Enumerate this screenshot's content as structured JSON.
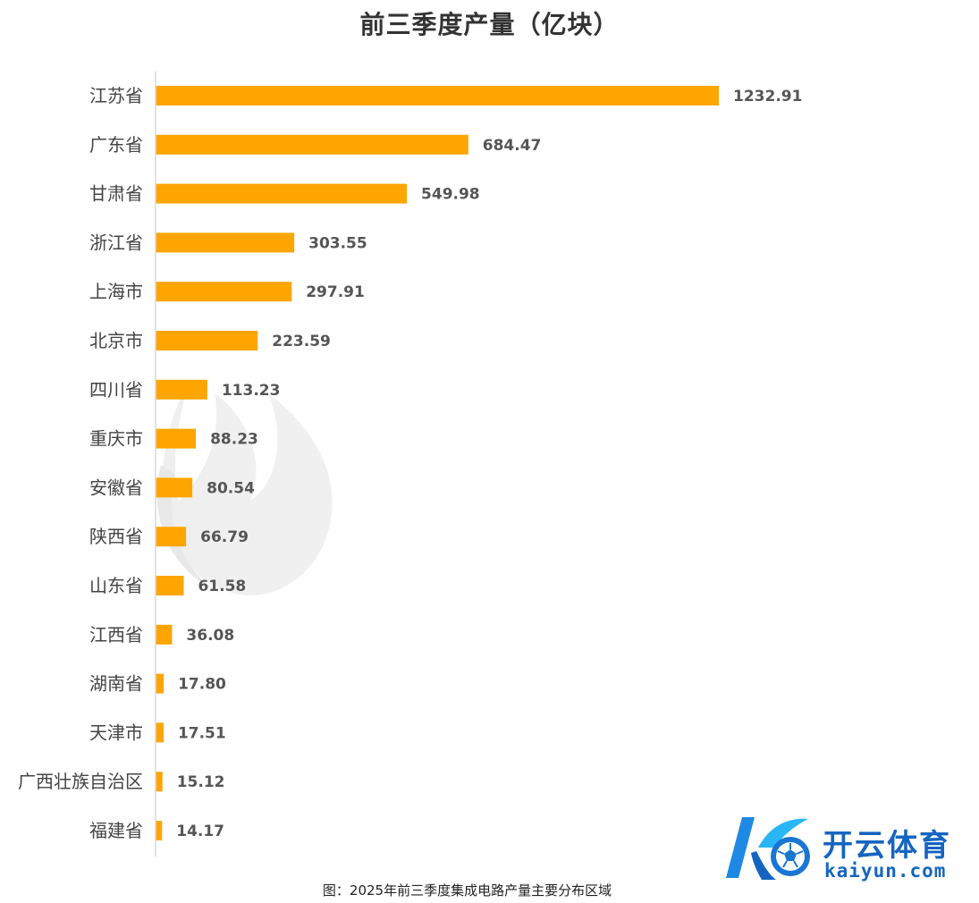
{
  "chart_data": {
    "type": "bar",
    "orientation": "horizontal",
    "title": "前三季度产量（亿块）",
    "categories": [
      "江苏省",
      "广东省",
      "甘肃省",
      "浙江省",
      "上海市",
      "北京市",
      "四川省",
      "重庆市",
      "安徽省",
      "陕西省",
      "山东省",
      "江西省",
      "湖南省",
      "天津市",
      "广西壮族自治区",
      "福建省"
    ],
    "values": [
      1232.91,
      684.47,
      549.98,
      303.55,
      297.91,
      223.59,
      113.23,
      88.23,
      80.54,
      66.79,
      61.58,
      36.08,
      17.8,
      17.51,
      15.12,
      14.17
    ],
    "value_labels": [
      "1232.91",
      "684.47",
      "549.98",
      "303.55",
      "297.91",
      "223.59",
      "113.23",
      "88.23",
      "80.54",
      "66.79",
      "61.58",
      "36.08",
      "17.80",
      "17.51",
      "15.12",
      "14.17"
    ],
    "xlim": [
      0,
      1232.91
    ],
    "grid": false,
    "legend": "none",
    "bar_color": "#ffa500"
  },
  "caption": "图：2025年前三季度集成电路产量主要分布区域",
  "watermark": {
    "icon": "flame-watermark-icon",
    "color": "#e9e9e9"
  },
  "brand": {
    "name": "开云体育",
    "domain": "kaiyun.com",
    "icon": "soccer-ball-k-logo-icon",
    "color": "#1565c0"
  }
}
